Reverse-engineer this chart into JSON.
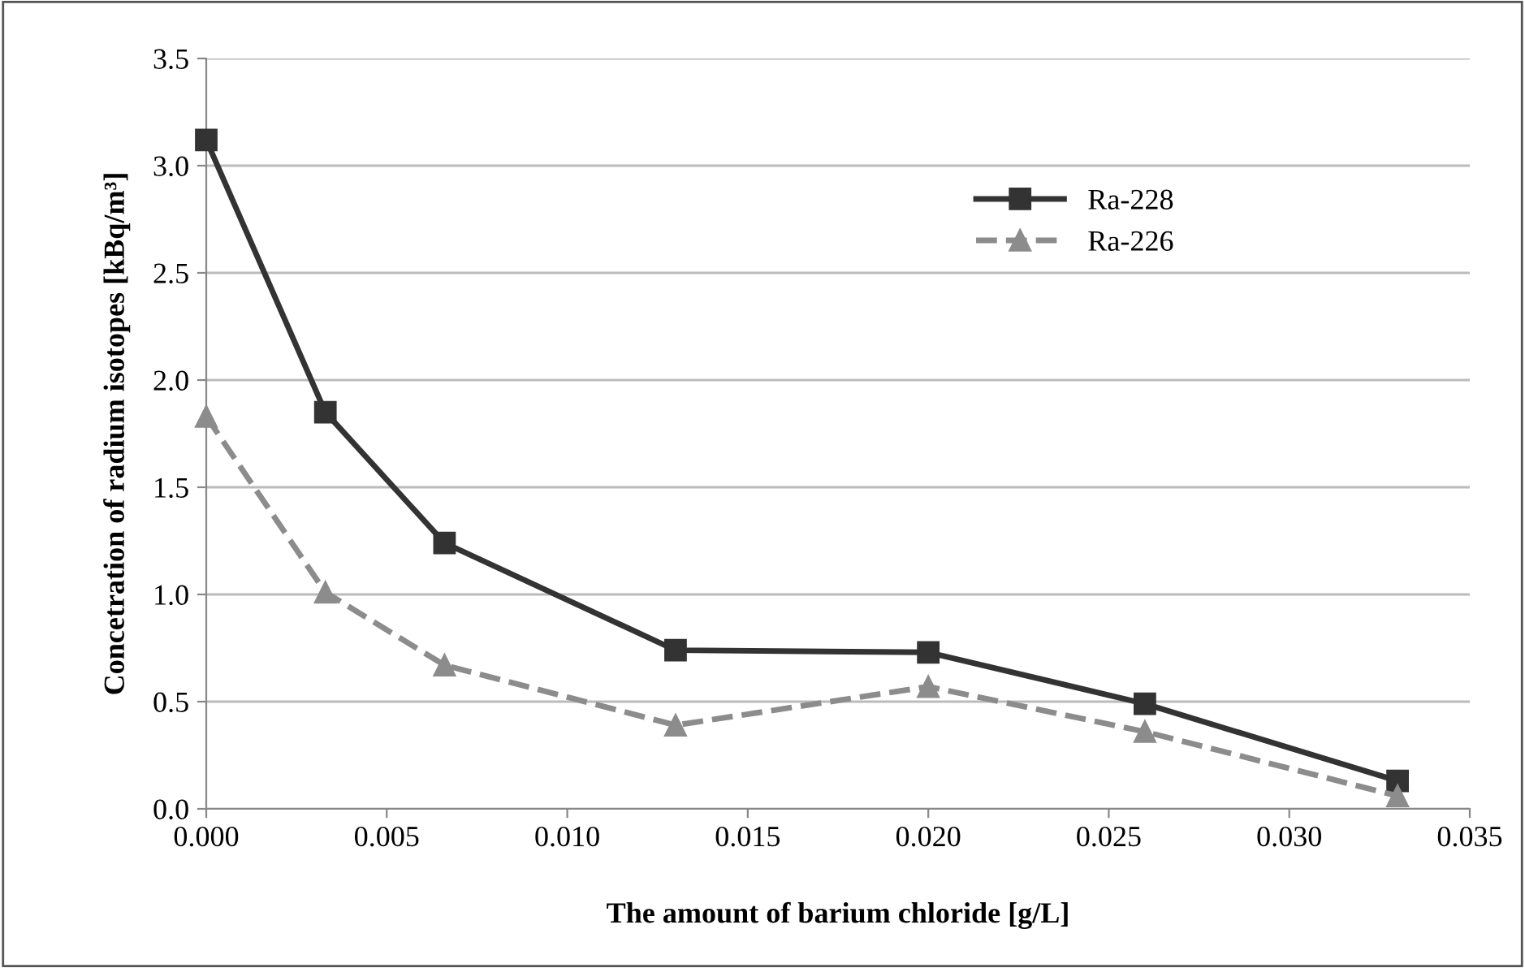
{
  "chart_data": {
    "type": "line",
    "xlabel": "The amount of barium chloride [g/L]",
    "ylabel": "Concetration of radium isotopes [kBq/m³]",
    "x": [
      0.0,
      0.0033,
      0.0066,
      0.013,
      0.02,
      0.026,
      0.033
    ],
    "series": [
      {
        "name": "Ra-228",
        "color": "#333333",
        "values": [
          3.12,
          1.85,
          1.24,
          0.74,
          0.73,
          0.49,
          0.13
        ],
        "marker": "square",
        "line_style": "solid"
      },
      {
        "name": "Ra-226",
        "color": "#8c8c8c",
        "values": [
          1.83,
          1.01,
          0.67,
          0.39,
          0.57,
          0.36,
          0.06
        ],
        "marker": "triangle",
        "line_style": "dashed"
      }
    ],
    "xlim": [
      0,
      0.035
    ],
    "ylim": [
      0,
      3.5
    ],
    "xticks": [
      {
        "value": 0,
        "label": "0.000"
      },
      {
        "value": 0.005,
        "label": "0.005"
      },
      {
        "value": 0.01,
        "label": "0.010"
      },
      {
        "value": 0.015,
        "label": "0.015"
      },
      {
        "value": 0.02,
        "label": "0.020"
      },
      {
        "value": 0.025,
        "label": "0.025"
      },
      {
        "value": 0.03,
        "label": "0.030"
      },
      {
        "value": 0.035,
        "label": "0.035"
      }
    ],
    "yticks": [
      {
        "value": 0,
        "label": "0.0"
      },
      {
        "value": 0.5,
        "label": "0.5"
      },
      {
        "value": 1,
        "label": "1.0"
      },
      {
        "value": 1.5,
        "label": "1.5"
      },
      {
        "value": 2,
        "label": "2.0"
      },
      {
        "value": 2.5,
        "label": "2.5"
      },
      {
        "value": 3,
        "label": "3.0"
      },
      {
        "value": 3.5,
        "label": "3.5"
      }
    ],
    "grid": "y",
    "legend": "top right"
  }
}
